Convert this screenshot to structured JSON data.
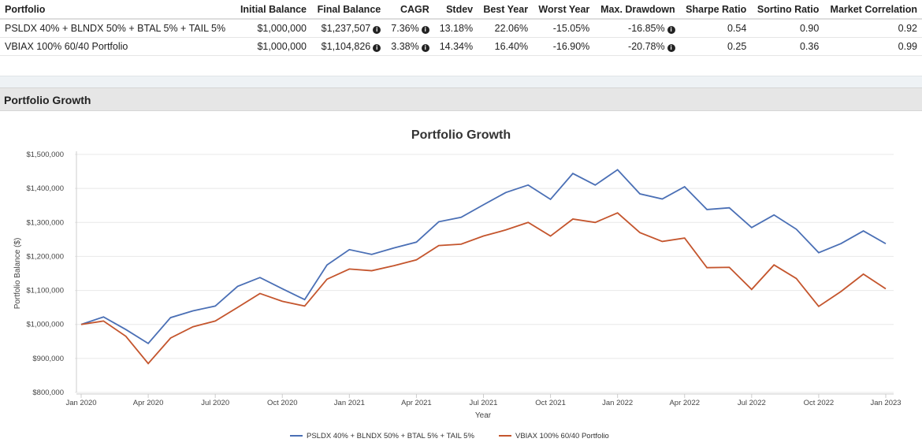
{
  "table": {
    "headers": [
      "Portfolio",
      "Initial Balance",
      "Final Balance",
      "CAGR",
      "Stdev",
      "Best Year",
      "Worst Year",
      "Max. Drawdown",
      "Sharpe Ratio",
      "Sortino Ratio",
      "Market Correlation"
    ],
    "rows": [
      [
        "PSLDX 40% + BLNDX 50% + BTAL 5% + TAIL 5%",
        "$1,000,000",
        "$1,237,507",
        "7.36%",
        "13.18%",
        "22.06%",
        "-15.05%",
        "-16.85%",
        "0.54",
        "0.90",
        "0.92"
      ],
      [
        "VBIAX 100% 60/40 Portfolio",
        "$1,000,000",
        "$1,104,826",
        "3.38%",
        "14.34%",
        "16.40%",
        "-16.90%",
        "-20.78%",
        "0.25",
        "0.36",
        "0.99"
      ]
    ],
    "info_icon": "info-circle-icon"
  },
  "section_title": "Portfolio Growth",
  "chart_data": {
    "type": "line",
    "title": "Portfolio Growth",
    "xlabel": "Year",
    "ylabel": "Portfolio Balance ($)",
    "ylim": [
      800000,
      1500000
    ],
    "yticks": [
      "$800,000",
      "$900,000",
      "$1,000,000",
      "$1,100,000",
      "$1,200,000",
      "$1,300,000",
      "$1,400,000",
      "$1,500,000"
    ],
    "xticks": [
      "Jan 2020",
      "Apr 2020",
      "Jul 2020",
      "Oct 2020",
      "Jan 2021",
      "Apr 2021",
      "Jul 2021",
      "Oct 2021",
      "Jan 2022",
      "Apr 2022",
      "Jul 2022",
      "Oct 2022",
      "Jan 2023"
    ],
    "x_start": "Jan 2020",
    "x_end": "Jan 2023",
    "x_interval": "monthly",
    "grid": true,
    "legend": "bottom",
    "series": [
      {
        "name": "PSLDX 40% + BLNDX 50% + BTAL 5% + TAIL 5%",
        "color": "#4a6fb5",
        "values": [
          1000000,
          1022000,
          985000,
          944000,
          1020000,
          1040000,
          1054000,
          1112000,
          1138000,
          1105000,
          1073000,
          1175000,
          1220000,
          1206000,
          1225000,
          1242000,
          1302000,
          1315000,
          1352000,
          1388000,
          1410000,
          1368000,
          1444000,
          1410000,
          1455000,
          1384000,
          1369000,
          1405000,
          1338000,
          1343000,
          1285000,
          1322000,
          1280000,
          1211000,
          1238000,
          1275000,
          1237507
        ]
      },
      {
        "name": "VBIAX 100% 60/40 Portfolio",
        "color": "#c4552d",
        "values": [
          1000000,
          1010000,
          965000,
          885000,
          960000,
          993000,
          1010000,
          1050000,
          1091000,
          1068000,
          1054000,
          1133000,
          1163000,
          1158000,
          1173000,
          1190000,
          1232000,
          1236000,
          1260000,
          1278000,
          1300000,
          1260000,
          1310000,
          1300000,
          1328000,
          1270000,
          1244000,
          1254000,
          1167000,
          1168000,
          1103000,
          1175000,
          1135000,
          1053000,
          1097000,
          1148000,
          1104826
        ]
      }
    ]
  }
}
